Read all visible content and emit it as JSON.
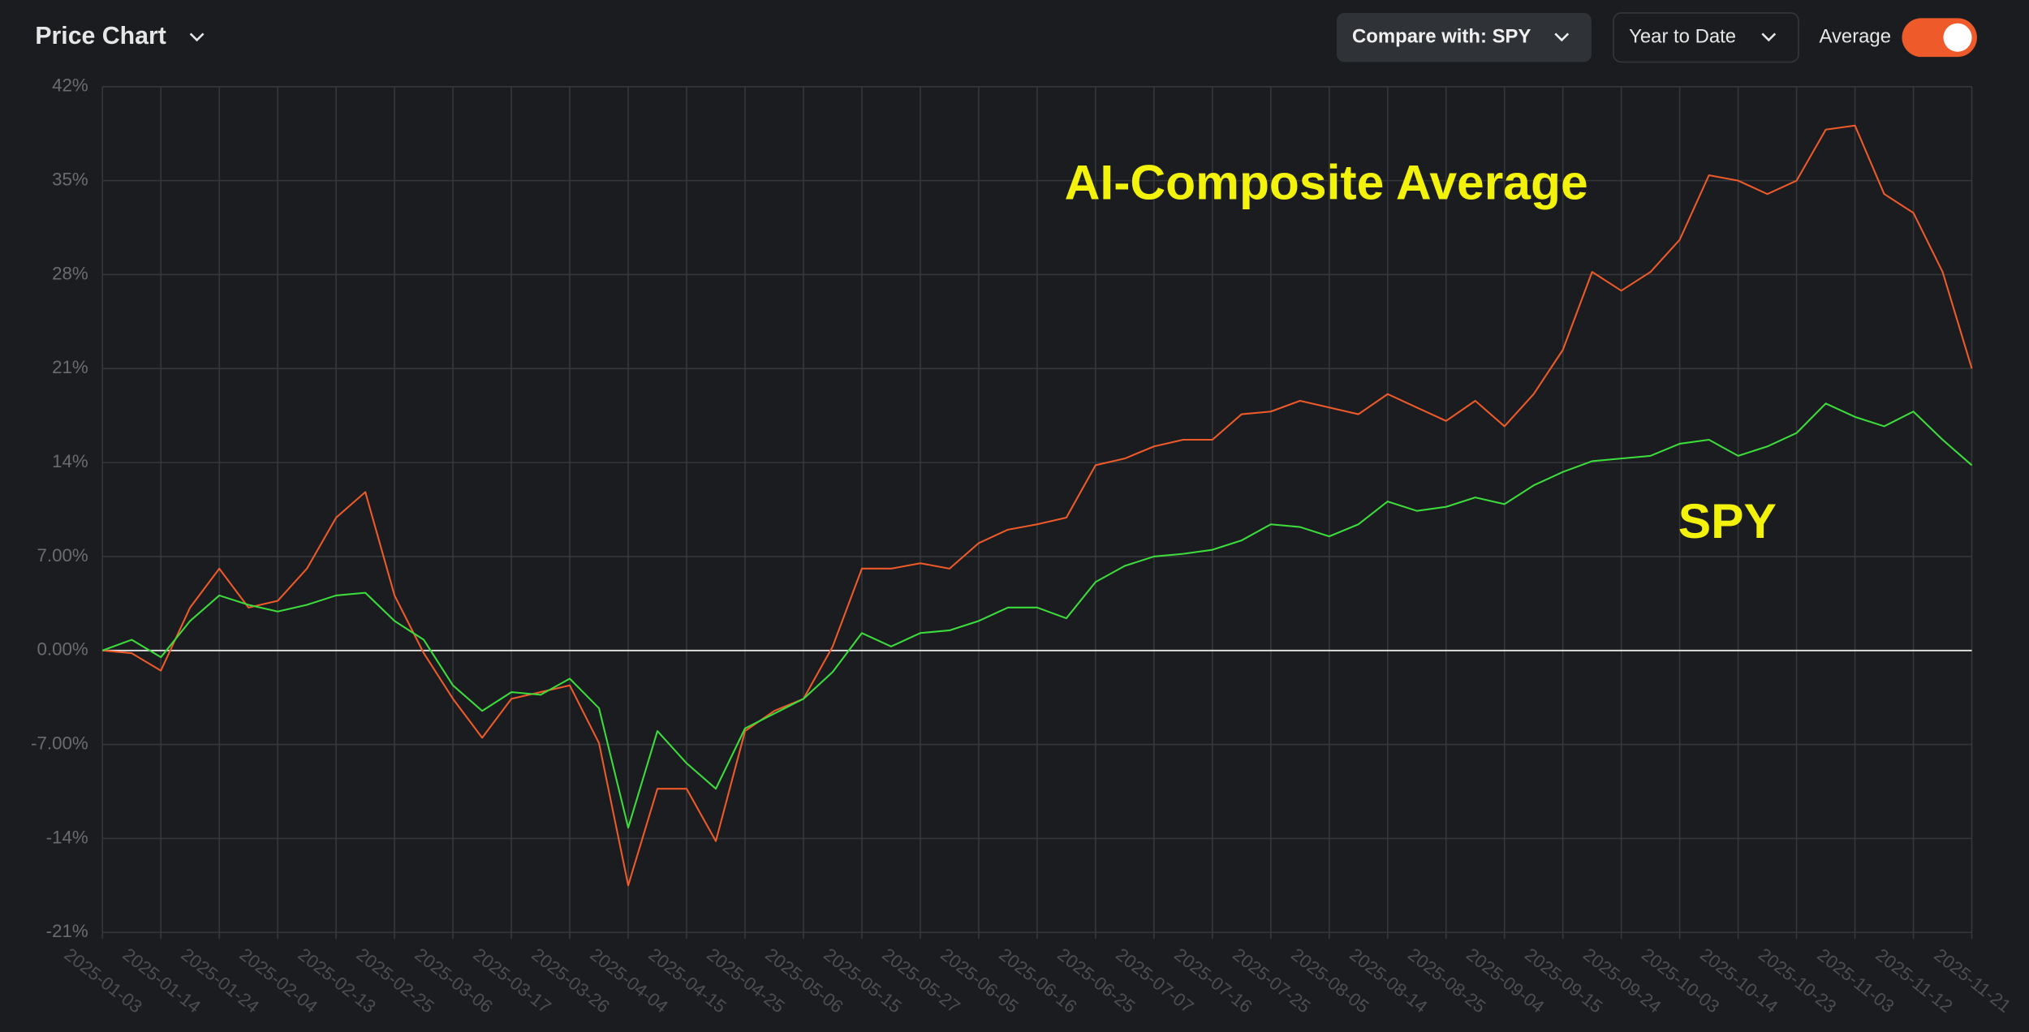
{
  "toolbar": {
    "title": "Price Chart",
    "compare": "Compare with: SPY",
    "range": "Year to Date",
    "toggle_label": "Average",
    "toggle_on": true
  },
  "chart_data": {
    "type": "line",
    "categories": [
      "2025-01-03",
      null,
      "2025-01-14",
      null,
      "2025-01-24",
      null,
      "2025-02-04",
      null,
      "2025-02-13",
      null,
      "2025-02-25",
      null,
      "2025-03-06",
      null,
      "2025-03-17",
      null,
      "2025-03-26",
      null,
      "2025-04-04",
      null,
      "2025-04-15",
      null,
      "2025-04-25",
      null,
      "2025-05-06",
      null,
      "2025-05-15",
      null,
      "2025-05-27",
      null,
      "2025-06-05",
      null,
      "2025-06-16",
      null,
      "2025-06-25",
      null,
      "2025-07-07",
      null,
      "2025-07-16",
      null,
      "2025-07-25",
      null,
      "2025-08-05",
      null,
      "2025-08-14",
      null,
      "2025-08-25",
      null,
      "2025-09-04",
      null,
      "2025-09-15",
      null,
      "2025-09-24",
      null,
      "2025-10-03",
      null,
      "2025-10-14",
      null,
      "2025-10-23",
      null,
      "2025-11-03",
      null,
      "2025-11-12",
      null,
      "2025-11-21"
    ],
    "series": [
      {
        "name": "AI-Composite Average",
        "color": "#ee5a2a",
        "label_color": "#f2f20a",
        "values": [
          0,
          -0.2,
          -1.5,
          3.2,
          6.1,
          3.2,
          3.7,
          6.1,
          9.9,
          11.8,
          4.1,
          -0.2,
          -3.6,
          -6.5,
          -3.6,
          -3.1,
          -2.6,
          -6.9,
          -17.5,
          -10.3,
          -10.3,
          -14.2,
          -6.0,
          -4.5,
          -3.6,
          0.3,
          6.1,
          6.1,
          6.5,
          6.1,
          8.0,
          9.0,
          9.4,
          9.9,
          13.8,
          14.3,
          15.2,
          15.7,
          15.7,
          17.6,
          17.8,
          18.6,
          18.1,
          17.6,
          19.1,
          18.1,
          17.1,
          18.6,
          16.7,
          19.1,
          22.4,
          28.2,
          26.8,
          28.2,
          30.6,
          35.4,
          35.0,
          34.0,
          35.0,
          38.8,
          39.1,
          34.0,
          32.6,
          28.2,
          21.0
        ]
      },
      {
        "name": "SPY",
        "color": "#3ddc3d",
        "label_color": "#f2f20a",
        "values": [
          0,
          0.8,
          -0.5,
          2.2,
          4.1,
          3.4,
          2.9,
          3.4,
          4.1,
          4.3,
          2.2,
          0.8,
          -2.6,
          -4.5,
          -3.1,
          -3.3,
          -2.1,
          -4.3,
          -13.2,
          -6.0,
          -8.4,
          -10.3,
          -5.8,
          -4.7,
          -3.6,
          -1.6,
          1.3,
          0.3,
          1.3,
          1.5,
          2.2,
          3.2,
          3.2,
          2.4,
          5.1,
          6.3,
          7.0,
          7.2,
          7.5,
          8.2,
          9.4,
          9.2,
          8.5,
          9.4,
          11.1,
          10.4,
          10.7,
          11.4,
          10.9,
          12.3,
          13.3,
          14.1,
          14.3,
          14.5,
          15.4,
          15.7,
          14.5,
          15.2,
          16.2,
          18.4,
          17.4,
          16.7,
          17.8,
          15.7,
          13.8
        ]
      }
    ],
    "ylim": [
      -21,
      42
    ],
    "yticks": [
      {
        "value": -21,
        "label": "-21%"
      },
      {
        "value": -14,
        "label": "-14%"
      },
      {
        "value": -7,
        "label": "-7.00%"
      },
      {
        "value": 0,
        "label": "0.00%"
      },
      {
        "value": 7,
        "label": "7.00%"
      },
      {
        "value": 14,
        "label": "14%"
      },
      {
        "value": 21,
        "label": "21%"
      },
      {
        "value": 28,
        "label": "28%"
      },
      {
        "value": 35,
        "label": "35%"
      },
      {
        "value": 42,
        "label": "42%"
      }
    ],
    "grid": true,
    "zero_line_color": "#e8e8e8"
  }
}
